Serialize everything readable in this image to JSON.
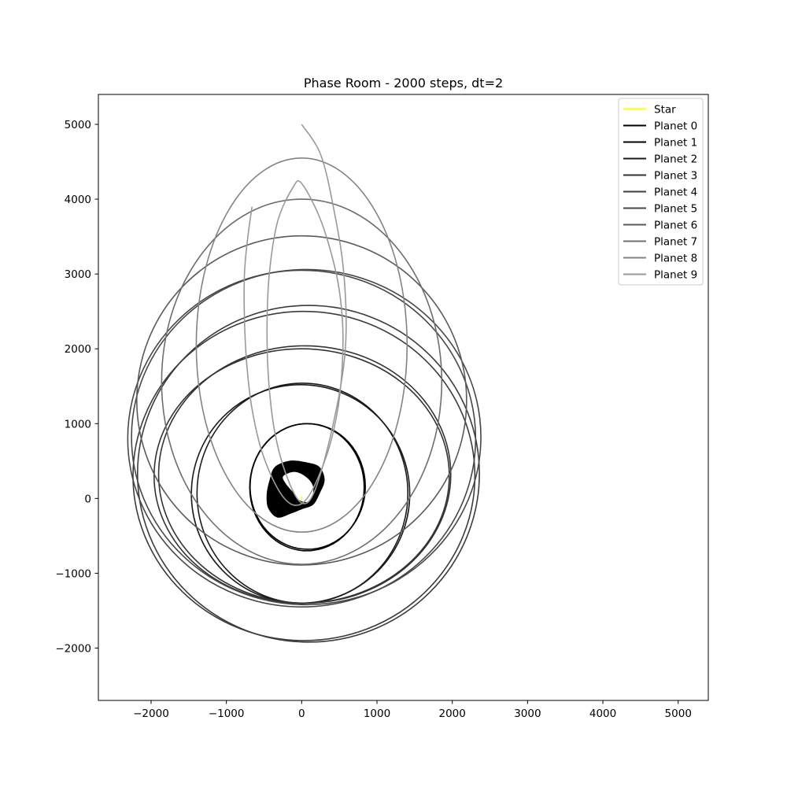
{
  "chart_data": {
    "type": "line",
    "title": "Phase Room - 2000 steps, dt=2",
    "xlabel": "",
    "ylabel": "",
    "xlim": [
      -2700,
      5400
    ],
    "ylim": [
      -2700,
      5400
    ],
    "x_ticks": [
      -2000,
      -1000,
      0,
      1000,
      2000,
      3000,
      4000,
      5000
    ],
    "y_ticks": [
      -2000,
      -1000,
      0,
      1000,
      2000,
      3000,
      4000,
      5000
    ],
    "grid": false,
    "legend_position": "top-right",
    "series": [
      {
        "name": "Star",
        "color": "#ffff00",
        "kind": "segment",
        "points": [
          [
            0,
            -20
          ],
          [
            0,
            20
          ]
        ]
      },
      {
        "name": "Planet 0",
        "color": "#000000",
        "kind": "blob",
        "outer": [
          [
            -350,
            420
          ],
          [
            -150,
            500
          ],
          [
            50,
            480
          ],
          [
            230,
            420
          ],
          [
            300,
            250
          ],
          [
            240,
            80
          ],
          [
            150,
            -80
          ],
          [
            0,
            -140
          ],
          [
            -150,
            -200
          ],
          [
            -320,
            -250
          ],
          [
            -440,
            -130
          ],
          [
            -460,
            50
          ],
          [
            -420,
            250
          ]
        ],
        "inner": [
          [
            -250,
            300
          ],
          [
            -100,
            360
          ],
          [
            50,
            300
          ],
          [
            150,
            180
          ],
          [
            150,
            40
          ],
          [
            80,
            -50
          ],
          [
            -30,
            -30
          ],
          [
            -120,
            80
          ],
          [
            -220,
            200
          ]
        ]
      },
      {
        "name": "Planet 1",
        "color": "#000000",
        "kind": "ellipse",
        "ellipses": [
          {
            "cx": 80,
            "cy": 160,
            "rx": 765,
            "ry": 840
          },
          {
            "cx": 70,
            "cy": 150,
            "rx": 760,
            "ry": 850
          }
        ]
      },
      {
        "name": "Planet 2",
        "color": "#1a1a1a",
        "kind": "ellipse",
        "ellipses": [
          {
            "cx": -15,
            "cy": 60,
            "rx": 1450,
            "ry": 1460
          },
          {
            "cx": 10,
            "cy": 70,
            "rx": 1400,
            "ry": 1470
          }
        ]
      },
      {
        "name": "Planet 3",
        "color": "#333333",
        "kind": "ellipse",
        "ellipses": [
          {
            "cx": 0,
            "cy": 300,
            "rx": 1960,
            "ry": 1700
          },
          {
            "cx": 40,
            "cy": 320,
            "rx": 1940,
            "ry": 1720
          }
        ]
      },
      {
        "name": "Planet 4",
        "color": "#3c3c3c",
        "kind": "ellipse",
        "ellipses": [
          {
            "cx": 30,
            "cy": 300,
            "rx": 2270,
            "ry": 2200
          },
          {
            "cx": 90,
            "cy": 330,
            "rx": 2270,
            "ry": 2250
          }
        ]
      },
      {
        "name": "Planet 5",
        "color": "#474747",
        "kind": "ellipse",
        "ellipses": [
          {
            "cx": 0,
            "cy": 800,
            "rx": 2310,
            "ry": 2250
          },
          {
            "cx": 60,
            "cy": 820,
            "rx": 2320,
            "ry": 2240
          }
        ]
      },
      {
        "name": "Planet 6",
        "color": "#5a5a5a",
        "kind": "ellipse",
        "ellipses": [
          {
            "cx": 0,
            "cy": 1310,
            "rx": 2190,
            "ry": 2200
          }
        ]
      },
      {
        "name": "Planet 7",
        "color": "#6e6e6e",
        "kind": "ellipse",
        "ellipses": [
          {
            "cx": 0,
            "cy": 1560,
            "rx": 1860,
            "ry": 2440
          }
        ]
      },
      {
        "name": "Planet 8",
        "color": "#838383",
        "kind": "ellipse",
        "ellipses": [
          {
            "cx": 0,
            "cy": 2050,
            "rx": 1400,
            "ry": 2500
          }
        ]
      },
      {
        "name": "Planet 9",
        "color": "#999999",
        "kind": "path",
        "points": [
          [
            -660,
            3900
          ],
          [
            -720,
            3450
          ],
          [
            -760,
            3000
          ],
          [
            -760,
            2400
          ],
          [
            -730,
            1800
          ],
          [
            -660,
            1200
          ],
          [
            -520,
            600
          ],
          [
            -300,
            100
          ],
          [
            -100,
            -90
          ],
          [
            100,
            40
          ],
          [
            340,
            600
          ],
          [
            480,
            1200
          ],
          [
            540,
            1800
          ],
          [
            540,
            2400
          ],
          [
            460,
            3000
          ],
          [
            260,
            3700
          ],
          [
            0,
            4210
          ],
          [
            -120,
            4150
          ],
          [
            -320,
            3700
          ],
          [
            -430,
            3000
          ],
          [
            -460,
            2300
          ],
          [
            -440,
            1600
          ],
          [
            -360,
            900
          ],
          [
            -200,
            300
          ],
          [
            0,
            -60
          ],
          [
            180,
            120
          ],
          [
            420,
            1000
          ],
          [
            580,
            2000
          ],
          [
            560,
            3000
          ],
          [
            420,
            3900
          ],
          [
            250,
            4600
          ],
          [
            0,
            5000
          ]
        ]
      }
    ]
  }
}
